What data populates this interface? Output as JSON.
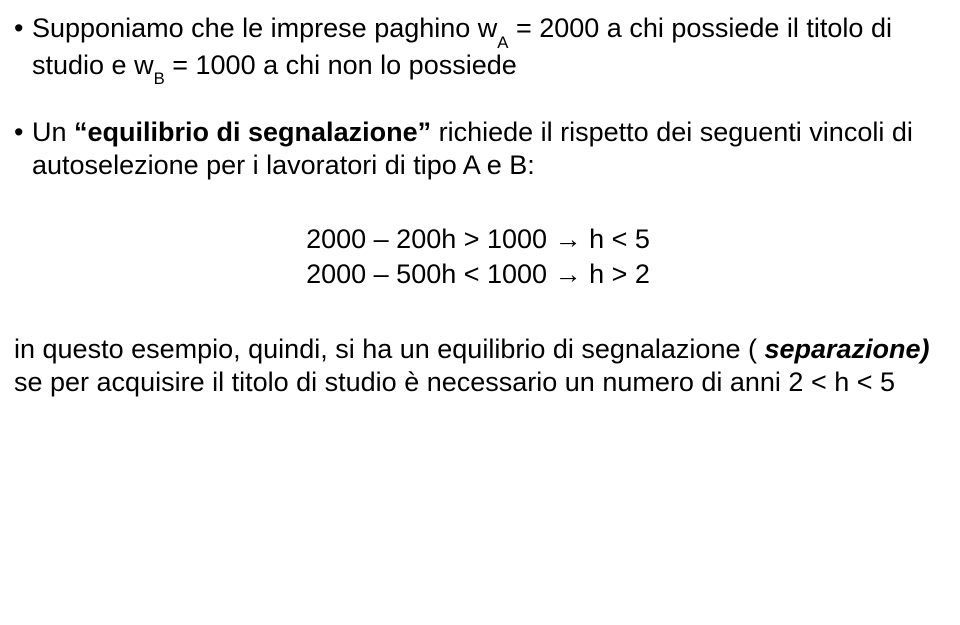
{
  "p1": {
    "pre": "Supponiamo che le imprese paghino  w",
    "sub1": "A",
    "mid1": " = 2000 a chi possiede il titolo di studio e  w",
    "sub2": "B",
    "mid2": " = 1000 a chi non lo possiede"
  },
  "p2": {
    "pre": "Un ",
    "quoted": "equilibrio di segnalazione",
    "post": " richiede il rispetto dei seguenti vincoli di  autoselezione  per i lavoratori di tipo A e B:"
  },
  "eq1": "2000 – 200h > 1000 → h < 5",
  "eq2": "2000 – 500h < 1000 → h > 2",
  "p3": {
    "a": "in questo esempio, quindi, si ha un equilibrio di segnalazione (",
    "b": " separazione)",
    "c": " se per acquisire il titolo di studio è necessario un numero di anni 2 < h < 5"
  },
  "bullet": "•"
}
